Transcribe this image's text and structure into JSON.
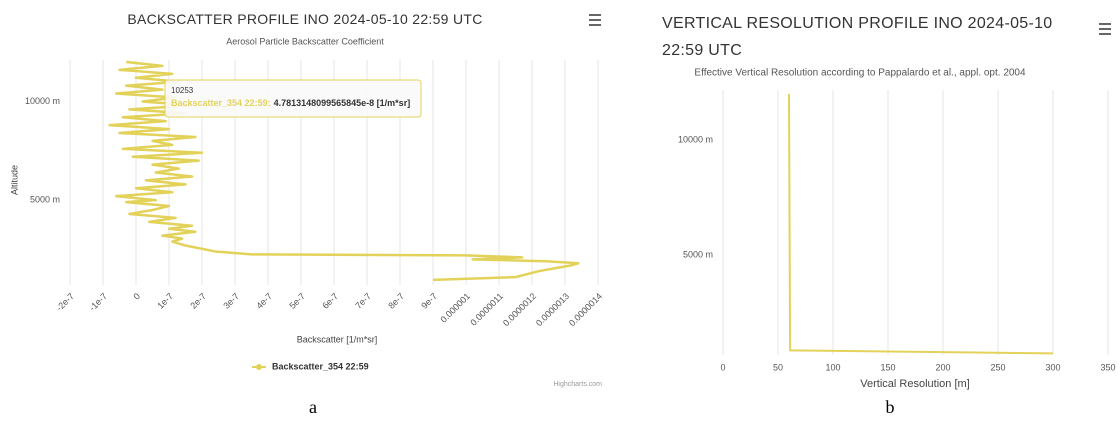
{
  "chart_data": [
    {
      "type": "line",
      "title": "BACKSCATTER PROFILE INO 2024-05-10 22:59 UTC",
      "subtitle": "Aerosol Particle Backscatter Coefficient",
      "x_label": "Backscatter [1/m*sr]",
      "y_label": "Altitude",
      "xlim": [
        -2e-07,
        1.4e-06
      ],
      "xticks": [
        -2e-07,
        -1e-07,
        0,
        1e-07,
        2e-07,
        3e-07,
        4e-07,
        5e-07,
        6e-07,
        7e-07,
        8e-07,
        9e-07,
        1e-06,
        1.1e-06,
        1.2e-06,
        1.3e-06,
        1.4e-06
      ],
      "ylim": [
        700,
        12100
      ],
      "yticks": [
        {
          "value": 5000,
          "label": "5000 m"
        },
        {
          "value": 10000,
          "label": "10000 m"
        }
      ],
      "grid": true,
      "legend": "bottom",
      "series": [
        {
          "name": "Backscatter_354 22:59",
          "color": "#e3d25a",
          "x": [
            9e-07,
            1.15e-06,
            1.22e-06,
            1.32e-06,
            1.34e-06,
            1.25e-06,
            1.02e-06,
            1.17e-06,
            1e-06,
            3.5e-07,
            2.4e-07,
            1.5e-07,
            1.1e-07,
            1.4e-07,
            8e-08,
            1.8e-07,
            1e-07,
            1.7e-07,
            4e-08,
            1.2e-07,
            -2e-08,
            5e-08,
            1e-07,
            -3e-08,
            6e-08,
            -6e-08,
            1.1e-07,
            0,
            1.5e-07,
            3e-08,
            1.7e-07,
            6e-08,
            1.3e-07,
            5e-08,
            1.9e-07,
            -1e-08,
            2e-07,
            -4e-08,
            1.1e-07,
            5e-08,
            1.8e-07,
            -5e-08,
            1e-07,
            -8e-08,
            9e-08,
            -4e-08,
            1.5e-07,
            -2e-08,
            1.7e-07,
            2e-08,
            1.2e-07,
            -6e-08,
            8e-08,
            -3e-08,
            1.3e-07,
            0,
            1.1e-07,
            -5e-08,
            8e-08,
            -3e-08
          ],
          "values": [
            960,
            1100,
            1400,
            1700,
            1800,
            1900,
            2000,
            2100,
            2200,
            2250,
            2400,
            2700,
            2900,
            3050,
            3200,
            3400,
            3550,
            3700,
            3900,
            4100,
            4300,
            4500,
            4700,
            4900,
            5000,
            5200,
            5400,
            5600,
            5800,
            6000,
            6200,
            6400,
            6600,
            6800,
            7000,
            7200,
            7400,
            7600,
            7800,
            8000,
            8200,
            8400,
            8600,
            8800,
            9000,
            9200,
            9400,
            9600,
            9800,
            10000,
            10200,
            10400,
            10600,
            10800,
            11000,
            11200,
            11400,
            11600,
            11800,
            12000
          ]
        }
      ],
      "tooltip": {
        "header": "10253",
        "series": "Backscatter_354 22:59:",
        "value": "4.7813148099565845e-8 [1/m*sr]"
      },
      "credits": "Highcharts.com",
      "caption": "a"
    },
    {
      "type": "line",
      "title": "VERTICAL RESOLUTION PROFILE INO 2024-05-10 22:59 UTC",
      "subtitle": "Effective Vertical Resolution according to Pappalardo et al., appl. opt. 2004",
      "x_label": "Vertical Resolution [m]",
      "xlim": [
        0,
        350
      ],
      "xticks": [
        0,
        50,
        100,
        150,
        200,
        250,
        300,
        350
      ],
      "ylim": [
        650,
        12170
      ],
      "yticks": [
        {
          "value": 5000,
          "label": "5000 m"
        },
        {
          "value": 10000,
          "label": "10000 m"
        }
      ],
      "grid": true,
      "series": [
        {
          "color": "#e3d25a",
          "x": [
            300,
            61,
            60
          ],
          "values": [
            720,
            850,
            12000
          ]
        }
      ],
      "caption": "b"
    }
  ]
}
